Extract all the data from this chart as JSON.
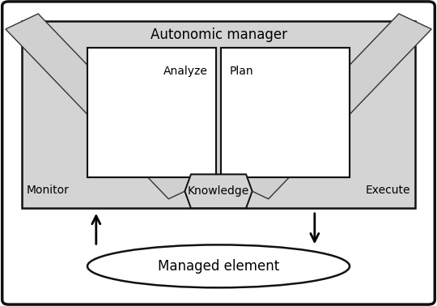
{
  "title": "Autonomic manager",
  "outer_bg": "#ffffff",
  "inner_bg": "#d4d4d4",
  "box_bg": "#ffffff",
  "band_fill": "#d0d0d0",
  "band_edge": "#333333",
  "knowledge_fill": "#d4d4d4",
  "label_monitor": "Monitor",
  "label_analyze": "Analyze",
  "label_plan": "Plan",
  "label_execute": "Execute",
  "label_knowledge": "Knowledge",
  "label_managed": "Managed element",
  "font_size_title": 12,
  "font_size_labels": 10,
  "font_size_managed": 12,
  "fig_w": 5.4,
  "fig_h": 3.78,
  "dpi": 100
}
